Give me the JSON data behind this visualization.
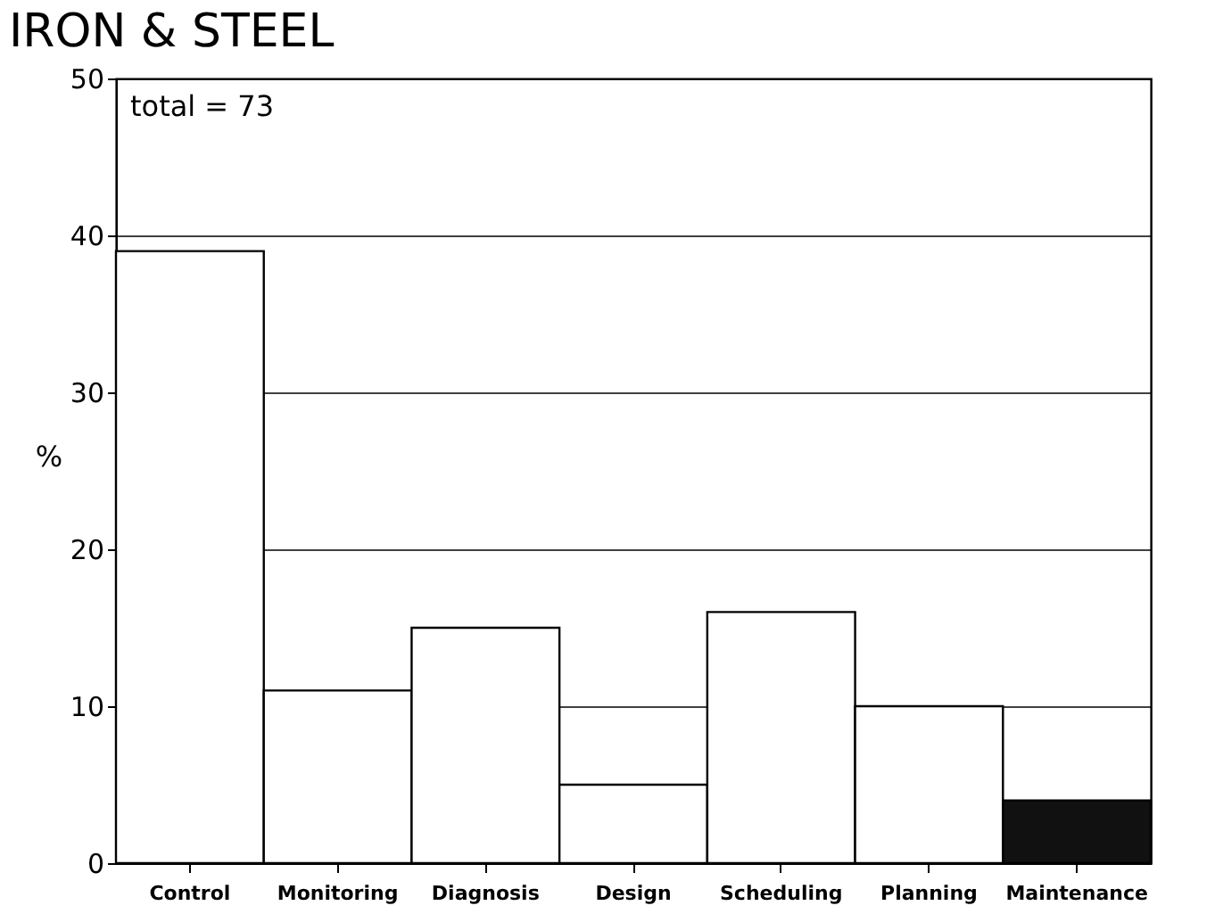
{
  "chart_data": {
    "type": "bar",
    "title": "IRON & STEEL",
    "ylabel": "%",
    "categories": [
      "Control",
      "Monitoring",
      "Diagnosis",
      "Design",
      "Scheduling",
      "Planning",
      "Maintenance"
    ],
    "values": [
      39,
      11,
      15,
      5,
      16,
      10,
      4
    ],
    "colors": [
      "#ffffff",
      "#ffffff",
      "#ffffff",
      "#ffffff",
      "#ffffff",
      "#ffffff",
      "#111111"
    ],
    "ylim": [
      0,
      50
    ],
    "yticks": [
      0,
      10,
      20,
      30,
      40,
      50
    ],
    "grid": "y",
    "annotations": [
      "total = 73"
    ]
  }
}
